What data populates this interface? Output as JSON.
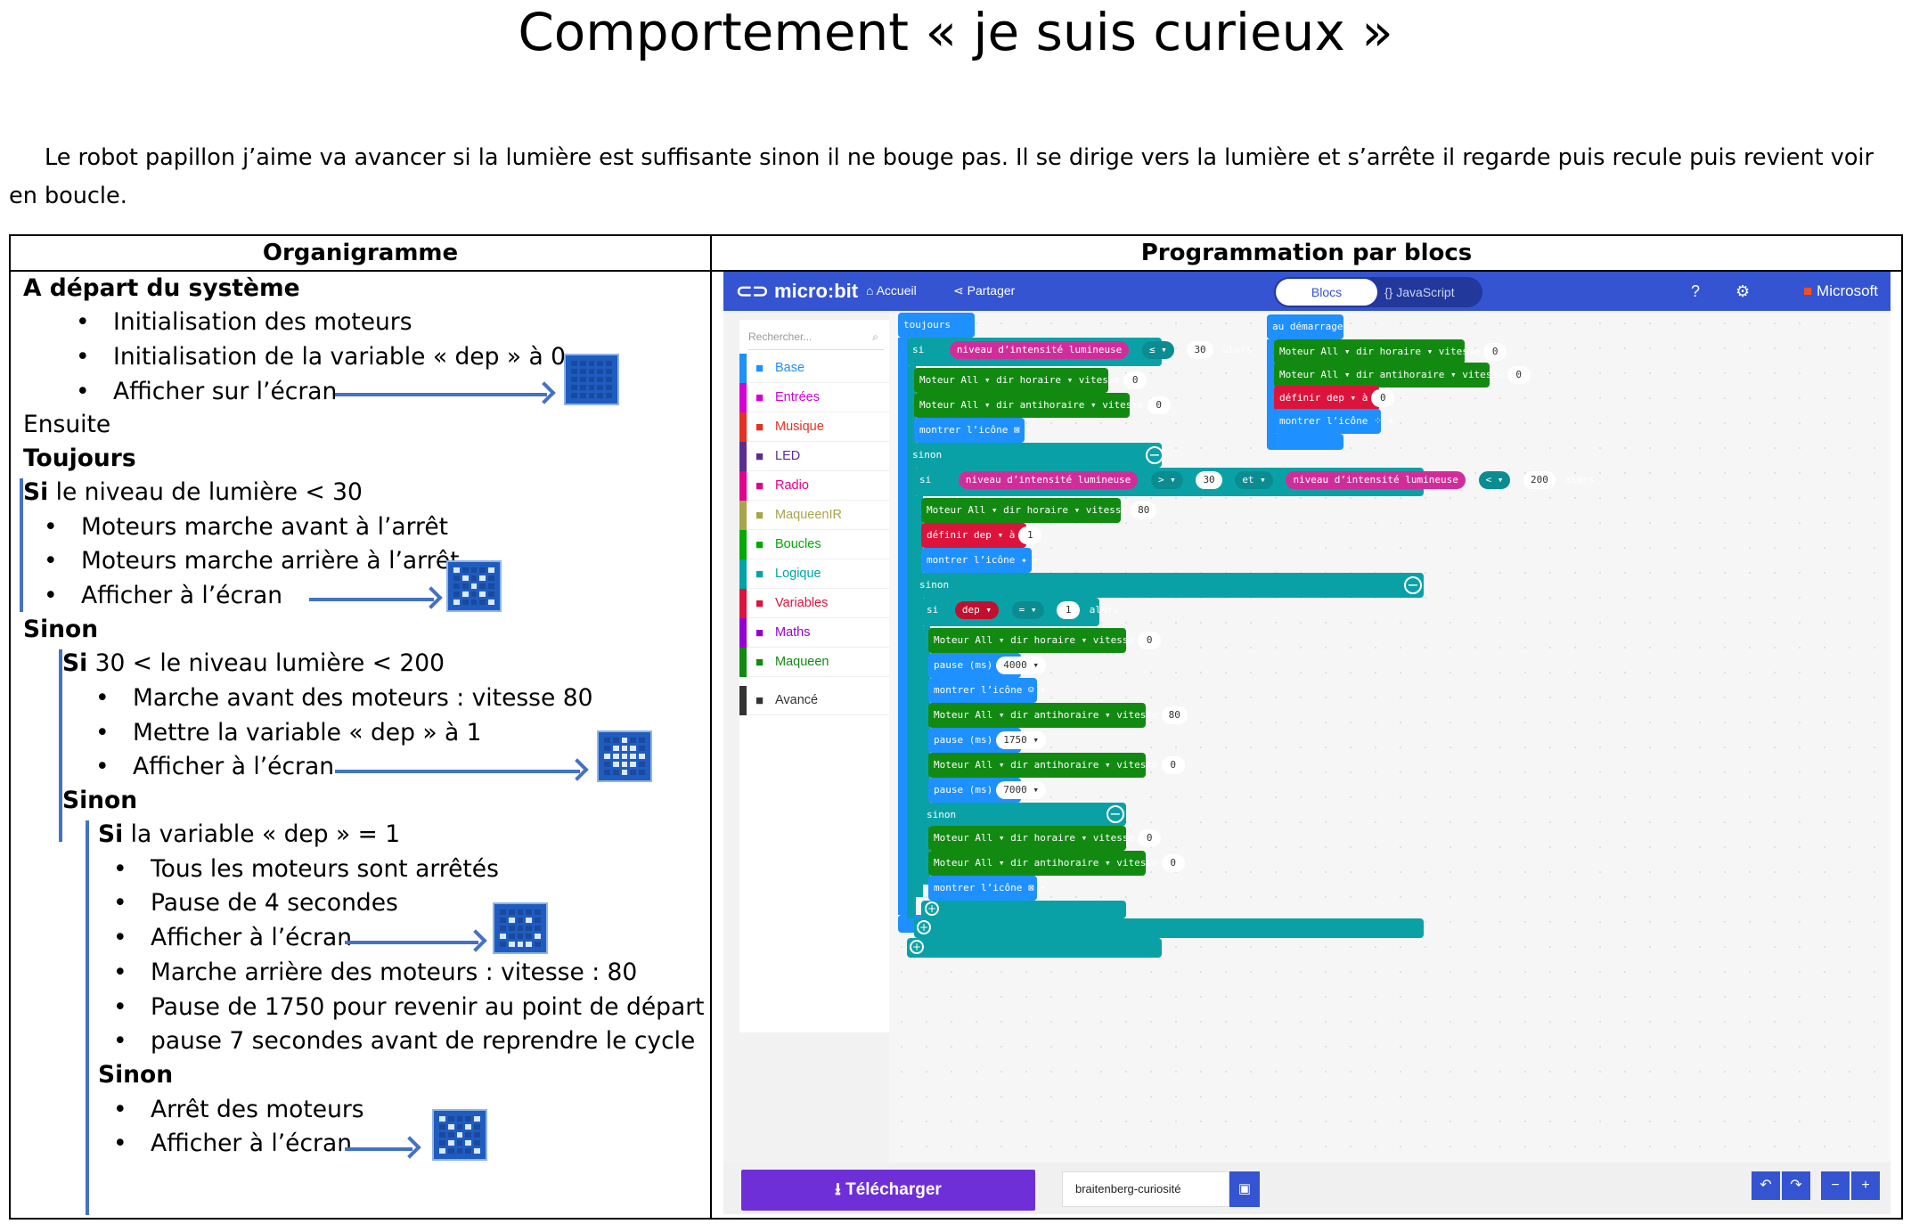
{
  "title": "Comportement « je suis curieux »",
  "intro": "Le robot papillon j’aime va avancer si la lumière est suffisante sinon il ne bouge pas. Il se dirige vers la lumière et s’arrête il regarde puis recule puis revient voir en boucle.",
  "table": {
    "col1_header": "Organigramme",
    "col2_header": "Programmation par blocs"
  },
  "flow": {
    "start": "A départ du système",
    "init_motors": "Initialisation des moteurs",
    "init_var": "Initialisation de la variable « dep » à 0",
    "show_screen": "Afficher sur l’écran",
    "then": "Ensuite",
    "always": "Toujours",
    "if1_kw": "Si",
    "if1_rest": " le niveau de lumière < 30",
    "a1": "Moteurs marche avant à l’arrêt",
    "a2": "Moteurs marche arrière à l’arrêt",
    "a3": "Afficher à l’écran",
    "else1": "Sinon",
    "if2_kw": "Si",
    "if2_rest": " 30 < le niveau lumière < 200",
    "b1": "Marche avant des moteurs : vitesse 80",
    "b2": "Mettre la variable « dep » à 1",
    "b3": "Afficher à l’écran",
    "else2": "Sinon",
    "if3_kw": "Si",
    "if3_rest": " la variable « dep » = 1",
    "c1": "Tous les moteurs sont arrêtés",
    "c2": "Pause de 4 secondes",
    "c3": "Afficher à l’écran",
    "c4": "Marche arrière des moteurs : vitesse : 80",
    "c5": "Pause de 1750 pour revenir au point de départ",
    "c6": "pause 7 secondes avant de reprendre le cycle",
    "else3": "Sinon",
    "d1": "Arrêt des moteurs",
    "d2": "Afficher à l’écran"
  },
  "led_icons": {
    "icon1": [
      0,
      0,
      0,
      0,
      0,
      0,
      0,
      0,
      0,
      0,
      0,
      0,
      0,
      0,
      0,
      0,
      0,
      0,
      0,
      0,
      0,
      0,
      0,
      0,
      0
    ],
    "icon2": [
      1,
      0,
      0,
      0,
      1,
      0,
      1,
      0,
      1,
      0,
      0,
      0,
      1,
      0,
      0,
      0,
      1,
      0,
      1,
      0,
      1,
      0,
      0,
      0,
      1
    ],
    "icon3": [
      0,
      0,
      1,
      0,
      0,
      0,
      1,
      1,
      1,
      0,
      1,
      1,
      1,
      1,
      1,
      0,
      1,
      1,
      1,
      0,
      0,
      0,
      1,
      0,
      0
    ],
    "icon4": [
      0,
      0,
      0,
      0,
      0,
      0,
      1,
      0,
      1,
      0,
      0,
      0,
      0,
      0,
      0,
      1,
      0,
      0,
      0,
      1,
      0,
      1,
      1,
      1,
      0
    ],
    "icon5": [
      1,
      0,
      0,
      0,
      1,
      0,
      1,
      0,
      1,
      0,
      0,
      0,
      1,
      0,
      0,
      0,
      1,
      0,
      1,
      0,
      1,
      0,
      0,
      0,
      1
    ]
  },
  "editor": {
    "logo": "micro:bit",
    "nav_home": "Accueil",
    "nav_share": "Partager",
    "tab_blocks": "Blocs",
    "tab_js": "JavaScript",
    "brand": "Microsoft",
    "search_placeholder": "Rechercher...",
    "categories": [
      {
        "label": "Base",
        "color": "#1e90ff",
        "icon": "grid-icon"
      },
      {
        "label": "Entrées",
        "color": "#d400d4",
        "icon": "target-icon"
      },
      {
        "label": "Musique",
        "color": "#e63022",
        "icon": "headphones-icon"
      },
      {
        "label": "LED",
        "color": "#5c2d91",
        "icon": "toggle-icon"
      },
      {
        "label": "Radio",
        "color": "#e3008c",
        "icon": "signal-icon"
      },
      {
        "label": "MaqueenIR",
        "color": "#a8a54b",
        "icon": "wifi-icon"
      },
      {
        "label": "Boucles",
        "color": "#00aa00",
        "icon": "loop-icon"
      },
      {
        "label": "Logique",
        "color": "#00a4a6",
        "icon": "shuffle-icon"
      },
      {
        "label": "Variables",
        "color": "#dc143c",
        "icon": "list-icon"
      },
      {
        "label": "Maths",
        "color": "#9400d3",
        "icon": "calculator-icon"
      },
      {
        "label": "Maqueen",
        "color": "#128a12",
        "icon": "m-icon"
      },
      {
        "label": "Avancé",
        "color": "#333333",
        "icon": "chevron-down-icon"
      }
    ],
    "blocks": {
      "forever": "toujours",
      "on_start": "au démarrage",
      "si": "si",
      "sinon": "sinon",
      "alors": "alors",
      "et": "et",
      "light": "niveau d’intensité lumineuse",
      "lt": "≤ ▾",
      "gt": "> ▾",
      "lt2": "< ▾",
      "eq": "= ▾",
      "v30": "30",
      "v200": "200",
      "motor_all_fwd": "Moteur  All ▾  dir  horaire ▾  vitesse",
      "motor_all_bwd": "Moteur  All ▾  dir  antihoraire ▾  vitesse",
      "v0": "0",
      "v80": "80",
      "v1": "1",
      "show_icon": "montrer l’icône",
      "set_dep": "définir  dep ▾  à",
      "dep": "dep ▾",
      "pause": "pause (ms)",
      "p4000": "4000 ▾",
      "p1750": "1750 ▾",
      "p7000": "7000 ▾"
    },
    "download": "Télécharger",
    "project_name": "braitenberg-curiosité"
  }
}
